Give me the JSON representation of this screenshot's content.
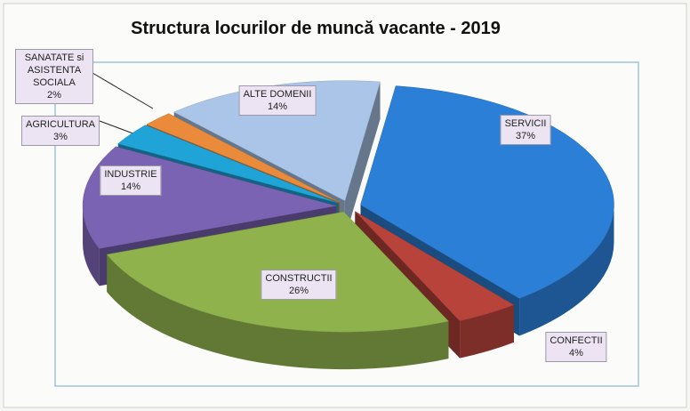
{
  "chart_data": {
    "type": "pie",
    "title": "Structura locurilor de muncă vacante - 2019",
    "categories": [
      "SERVICII",
      "CONFECTII",
      "CONSTRUCTII",
      "INDUSTRIE",
      "AGRICULTURA",
      "SANATATE si ASISTENTA SOCIALA",
      "ALTE DOMENII"
    ],
    "values": [
      37,
      4,
      26,
      14,
      3,
      2,
      14
    ],
    "value_labels": [
      "37%",
      "4%",
      "26%",
      "14%",
      "3%",
      "2%",
      "14%"
    ],
    "colors": [
      "#2b7fd6",
      "#b8433b",
      "#8fb24c",
      "#7a63b2",
      "#20a4d8",
      "#e98b3b",
      "#aac5e8"
    ]
  }
}
